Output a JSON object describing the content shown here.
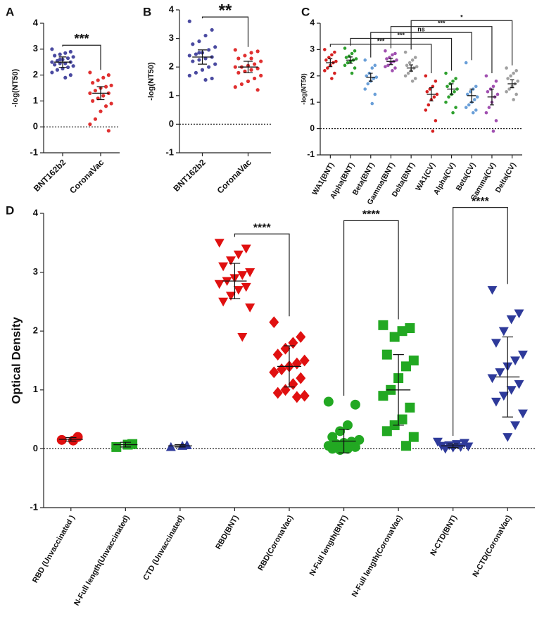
{
  "chart_data": [
    {
      "type": "dot",
      "title": "A",
      "ylabel": "-log(NT50)",
      "categories": [
        "BNT162b2",
        "CoronaVac"
      ],
      "colors": [
        "#4a4aa0",
        "#e03030"
      ],
      "markers": [
        "circle",
        "circle"
      ],
      "points": [
        [
          3.0,
          2.9,
          2.85,
          2.8,
          2.75,
          2.7,
          2.65,
          2.6,
          2.55,
          2.5,
          2.5,
          2.45,
          2.45,
          2.4,
          2.35,
          2.3,
          2.25,
          2.2,
          2.1,
          2.0,
          1.9,
          2.6
        ],
        [
          2.1,
          2.0,
          1.9,
          1.8,
          1.7,
          1.6,
          1.55,
          1.5,
          1.4,
          1.3,
          1.3,
          1.2,
          1.1,
          1.0,
          0.9,
          0.8,
          0.6,
          0.3,
          0.1,
          -0.15
        ]
      ],
      "means": [
        2.5,
        1.3
      ],
      "errors": [
        0.2,
        0.25
      ],
      "ylim": [
        -1,
        4
      ],
      "yticks": [
        -1,
        0,
        1,
        2,
        3,
        4
      ],
      "reference_line": 0,
      "annotations": [
        {
          "label": "***",
          "between": [
            "BNT162b2",
            "CoronaVac"
          ]
        }
      ]
    },
    {
      "type": "dot",
      "title": "B",
      "ylabel": "-log(NT50)",
      "categories": [
        "BNT162b2",
        "CoronaVac"
      ],
      "colors": [
        "#4a4aa0",
        "#e03030"
      ],
      "markers": [
        "circle",
        "circle"
      ],
      "points": [
        [
          3.6,
          3.3,
          3.1,
          2.9,
          2.8,
          2.7,
          2.6,
          2.5,
          2.45,
          2.4,
          2.35,
          2.3,
          2.25,
          2.2,
          2.1,
          2.0,
          1.9,
          1.8,
          1.7,
          1.6,
          1.55,
          2.5
        ],
        [
          2.6,
          2.55,
          2.5,
          2.4,
          2.3,
          2.2,
          2.1,
          2.05,
          2.0,
          2.0,
          1.95,
          1.9,
          1.85,
          1.8,
          1.7,
          1.6,
          1.5,
          1.4,
          1.3,
          1.2,
          2.3
        ]
      ],
      "means": [
        2.35,
        2.0
      ],
      "errors": [
        0.25,
        0.2
      ],
      "ylim": [
        -1,
        4
      ],
      "yticks": [
        -1,
        0,
        1,
        2,
        3,
        4
      ],
      "reference_line": 0,
      "annotations": [
        {
          "label": "**",
          "between": [
            "BNT162b2",
            "CoronaVac"
          ]
        }
      ]
    },
    {
      "type": "dot",
      "title": "C",
      "ylabel": "-log(NT50)",
      "categories": [
        "WA1(BNT)",
        "Alpha(BNT)",
        "Beta(BNT)",
        "Gamma(BNT)",
        "Delta(BNT)",
        "WA1(CV)",
        "Alpha(CV)",
        "Beta(CV)",
        "Gamma(CV)",
        "Delta(CV)"
      ],
      "colors": [
        "#d62020",
        "#2ea02e",
        "#6a9fd8",
        "#a050b0",
        "#a0a0a0",
        "#d62020",
        "#2ea02e",
        "#6a9fd8",
        "#a050b0",
        "#a0a0a0"
      ],
      "markers": [
        "circle",
        "circle",
        "circle",
        "circle",
        "circle",
        "circle",
        "circle",
        "circle",
        "circle",
        "circle"
      ],
      "points": [
        [
          3.0,
          2.9,
          2.8,
          2.7,
          2.6,
          2.55,
          2.5,
          2.4,
          2.3,
          2.2,
          2.1,
          1.9
        ],
        [
          3.05,
          2.95,
          2.85,
          2.75,
          2.7,
          2.65,
          2.6,
          2.55,
          2.5,
          2.4,
          2.3,
          2.1
        ],
        [
          2.6,
          2.4,
          2.3,
          2.1,
          2.0,
          1.95,
          1.9,
          1.8,
          1.7,
          1.5,
          1.3,
          0.95
        ],
        [
          2.95,
          2.85,
          2.8,
          2.7,
          2.65,
          2.6,
          2.55,
          2.5,
          2.4,
          2.35,
          2.3,
          2.2
        ],
        [
          2.9,
          2.7,
          2.6,
          2.5,
          2.4,
          2.35,
          2.3,
          2.2,
          2.1,
          2.0,
          1.9,
          1.8
        ],
        [
          2.0,
          1.8,
          1.6,
          1.5,
          1.4,
          1.3,
          1.2,
          1.1,
          0.9,
          0.7,
          0.3,
          -0.1
        ],
        [
          2.1,
          1.9,
          1.8,
          1.7,
          1.6,
          1.5,
          1.4,
          1.3,
          1.2,
          1.0,
          0.8,
          0.6
        ],
        [
          2.5,
          1.6,
          1.5,
          1.4,
          1.3,
          1.2,
          1.1,
          1.0,
          0.9,
          0.8,
          0.7,
          0.6
        ],
        [
          2.0,
          1.8,
          1.6,
          1.5,
          1.4,
          1.3,
          1.2,
          1.0,
          0.8,
          0.6,
          0.3,
          -0.1
        ],
        [
          2.3,
          2.2,
          2.1,
          2.0,
          1.9,
          1.8,
          1.7,
          1.6,
          1.5,
          1.4,
          1.3,
          1.1
        ]
      ],
      "means": [
        2.5,
        2.6,
        1.95,
        2.55,
        2.3,
        1.3,
        1.5,
        1.25,
        1.2,
        1.7
      ],
      "errors": [
        0.15,
        0.12,
        0.15,
        0.12,
        0.12,
        0.25,
        0.2,
        0.25,
        0.3,
        0.15
      ],
      "ylim": [
        -1,
        4
      ],
      "yticks": [
        -1,
        0,
        1,
        2,
        3,
        4
      ],
      "reference_line": 0,
      "annotations": [
        {
          "label": "***",
          "between": [
            "WA1(BNT)",
            "WA1(CV)"
          ]
        },
        {
          "label": "***",
          "between": [
            "Alpha(BNT)",
            "Alpha(CV)"
          ]
        },
        {
          "label": "ns",
          "between": [
            "Beta(BNT)",
            "Beta(CV)"
          ]
        },
        {
          "label": "***",
          "between": [
            "Gamma(BNT)",
            "Gamma(CV)"
          ]
        },
        {
          "label": "*",
          "between": [
            "Delta(BNT)",
            "Delta(CV)"
          ]
        }
      ]
    },
    {
      "type": "dot",
      "title": "D",
      "ylabel": "Optical  Density",
      "categories": [
        "RBD (Unvaccinated )",
        "N-Full length(Unvaccinated)",
        "CTD (Unvaccinated)",
        "RBD(BNT)",
        "RBD(CoronaVac)",
        "N-Full length(BNT)",
        "N-Full length(CoronaVac)",
        "N-CTD(BNT)",
        "N-CTD(CoronaVac)"
      ],
      "colors": [
        "#e01010",
        "#22a822",
        "#2e3a9a",
        "#e01010",
        "#e01010",
        "#22a822",
        "#22a822",
        "#2e3a9a",
        "#2e3a9a"
      ],
      "markers": [
        "circle",
        "square",
        "triangle",
        "triangle-down",
        "diamond",
        "circle",
        "square",
        "triangle-down",
        "triangle-down"
      ],
      "points": [
        [
          0.15,
          0.2,
          0.14
        ],
        [
          0.03,
          0.08,
          0.07
        ],
        [
          0.03,
          0.06,
          0.05
        ],
        [
          3.5,
          3.4,
          3.3,
          3.2,
          3.1,
          3.0,
          2.95,
          2.9,
          2.85,
          2.8,
          2.75,
          2.7,
          2.6,
          2.5,
          2.4,
          1.9
        ],
        [
          2.15,
          1.9,
          1.8,
          1.7,
          1.6,
          1.5,
          1.45,
          1.4,
          1.35,
          1.3,
          1.2,
          1.1,
          1.0,
          0.95,
          0.9,
          0.88
        ],
        [
          0.8,
          0.75,
          0.4,
          0.3,
          0.2,
          0.15,
          0.12,
          0.1,
          0.08,
          0.05,
          0.03,
          0.0,
          -0.02,
          0.0
        ],
        [
          2.1,
          2.05,
          2.0,
          1.9,
          1.6,
          1.5,
          1.4,
          1.2,
          1.0,
          0.9,
          0.7,
          0.5,
          0.4,
          0.3,
          0.2,
          0.05
        ],
        [
          0.12,
          0.1,
          0.08,
          0.06,
          0.05,
          0.04,
          0.03,
          0.02,
          0.0
        ],
        [
          2.7,
          2.3,
          2.2,
          2.0,
          1.8,
          1.6,
          1.5,
          1.4,
          1.3,
          1.2,
          1.1,
          1.0,
          0.9,
          0.8,
          0.6,
          0.4,
          0.2
        ]
      ],
      "means": [
        0.16,
        0.07,
        0.05,
        2.85,
        1.4,
        0.13,
        1.0,
        0.05,
        1.22
      ],
      "errors": [
        0.03,
        0.04,
        0.02,
        0.3,
        0.35,
        0.2,
        0.6,
        0.03,
        0.68
      ],
      "ylim": [
        -1,
        4
      ],
      "yticks": [
        -1,
        0,
        1,
        2,
        3,
        4
      ],
      "reference_line": 0,
      "annotations": [
        {
          "label": "****",
          "between": [
            "RBD(BNT)",
            "RBD(CoronaVac)"
          ]
        },
        {
          "label": "****",
          "between": [
            "N-Full length(BNT)",
            "N-Full length(CoronaVac)"
          ]
        },
        {
          "label": "****",
          "between": [
            "N-CTD(BNT)",
            "N-CTD(CoronaVac)"
          ]
        }
      ]
    }
  ]
}
